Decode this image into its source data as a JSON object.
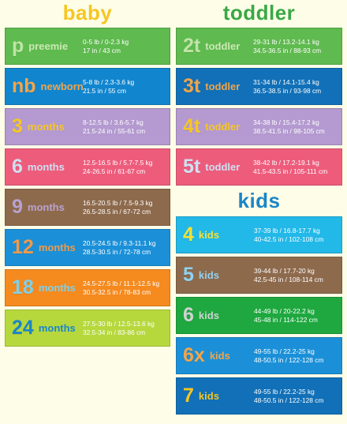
{
  "headings": {
    "baby": "baby",
    "toddler": "toddler",
    "kids": "kids"
  },
  "colors": {
    "baby_heading": "#f6c623",
    "toddler_heading": "#3aa845",
    "kids_heading": "#1a86c8"
  },
  "baby": [
    {
      "code": "p",
      "label": "preemie",
      "weight": "0-5 lb / 0-2.3 kg",
      "height": "17 in / 43 cm",
      "bg": "#5fba4f",
      "code_color": "#bfe4a7",
      "label_color": "#cbe8b3"
    },
    {
      "code": "nb",
      "label": "newborn",
      "weight": "5-8 lb / 2.3-3.6 kg",
      "height": "21.5 in / 55 cm",
      "bg": "#1186cf",
      "code_color": "#f2a54a",
      "label_color": "#f2a54a"
    },
    {
      "code": "3",
      "label": "months",
      "weight": "8-12.5 lb / 3.6-5.7 kg",
      "height": "21.5-24 in / 55-61 cm",
      "bg": "#b49ad0",
      "code_color": "#f6c623",
      "label_color": "#f6c623"
    },
    {
      "code": "6",
      "label": "months",
      "weight": "12.5-16.5 lb / 5.7-7.5 kg",
      "height": "24-26.5 in / 61-67 cm",
      "bg": "#ee5c7c",
      "code_color": "#cfe0f2",
      "label_color": "#cfe0f2"
    },
    {
      "code": "9",
      "label": "months",
      "weight": "16.5-20.5 lb / 7.5-9.3 kg",
      "height": "26.5-28.5 in / 67-72 cm",
      "bg": "#8e6a4d",
      "code_color": "#b8a2d0",
      "label_color": "#b8a2d0"
    },
    {
      "code": "12",
      "label": "months",
      "weight": "20.5-24.5 lb / 9.3-11.1 kg",
      "height": "28.5-30.5 in / 72-78 cm",
      "bg": "#1b90d8",
      "code_color": "#f09a4a",
      "label_color": "#f09a4a"
    },
    {
      "code": "18",
      "label": "months",
      "weight": "24.5-27.5 lb / 11.1-12.5 kg",
      "height": "30.5-32.5 in / 78-83 cm",
      "bg": "#f58a1e",
      "code_color": "#7fd0ea",
      "label_color": "#7fd0ea"
    },
    {
      "code": "24",
      "label": "months",
      "weight": "27.5-30 lb / 12.5-13.6 kg",
      "height": "32.5-34 in / 83-86 cm",
      "bg": "#b7d83d",
      "code_color": "#1a86c8",
      "label_color": "#1a86c8"
    }
  ],
  "toddler": [
    {
      "code": "2t",
      "label": "toddler",
      "weight": "29-31 lb / 13.2-14.1 kg",
      "height": "34.5-36.5 in / 88-93 cm",
      "bg": "#5fba4f",
      "code_color": "#bfe4a7",
      "label_color": "#cbe8b3"
    },
    {
      "code": "3t",
      "label": "toddler",
      "weight": "31-34 lb / 14.1-15.4 kg",
      "height": "36.5-38.5 in / 93-98 cm",
      "bg": "#1170b8",
      "code_color": "#f2a54a",
      "label_color": "#f2a54a"
    },
    {
      "code": "4t",
      "label": "toddler",
      "weight": "34-38 lb / 15.4-17.2 kg",
      "height": "38.5-41.5 in / 98-105 cm",
      "bg": "#b49ad0",
      "code_color": "#f6c623",
      "label_color": "#f6c623"
    },
    {
      "code": "5t",
      "label": "toddler",
      "weight": "38-42 lb / 17.2-19.1 kg",
      "height": "41.5-43.5 in / 105-111 cm",
      "bg": "#ee5c7c",
      "code_color": "#cfe0f2",
      "label_color": "#cfe0f2"
    }
  ],
  "kids": [
    {
      "code": "4",
      "label": "kids",
      "weight": "37-39 lb / 16.8-17.7 kg",
      "height": "40-42.5 in / 102-108 cm",
      "bg": "#22b8e8",
      "code_color": "#f6e133",
      "label_color": "#f6e133"
    },
    {
      "code": "5",
      "label": "kids",
      "weight": "39-44 lb / 17.7-20 kg",
      "height": "42.5-45 in / 108-114 cm",
      "bg": "#8e6a4d",
      "code_color": "#8fd2f0",
      "label_color": "#8fd2f0"
    },
    {
      "code": "6",
      "label": "kids",
      "weight": "44-49 lb / 20-22.2 kg",
      "height": "45-48 in / 114-122 cm",
      "bg": "#1ea83f",
      "code_color": "#d2d2d2",
      "label_color": "#d2d2d2"
    },
    {
      "code": "6x",
      "label": "kids",
      "weight": "49-55 lb / 22.2-25 kg",
      "height": "48-50.5 in / 122-128 cm",
      "bg": "#1b90d8",
      "code_color": "#f2a54a",
      "label_color": "#f2a54a"
    },
    {
      "code": "7",
      "label": "kids",
      "weight": "49-55 lb / 22.2-25 kg",
      "height": "48-50.5 in / 122-128 cm",
      "bg": "#1170b8",
      "code_color": "#f6c623",
      "label_color": "#f6c623"
    }
  ]
}
